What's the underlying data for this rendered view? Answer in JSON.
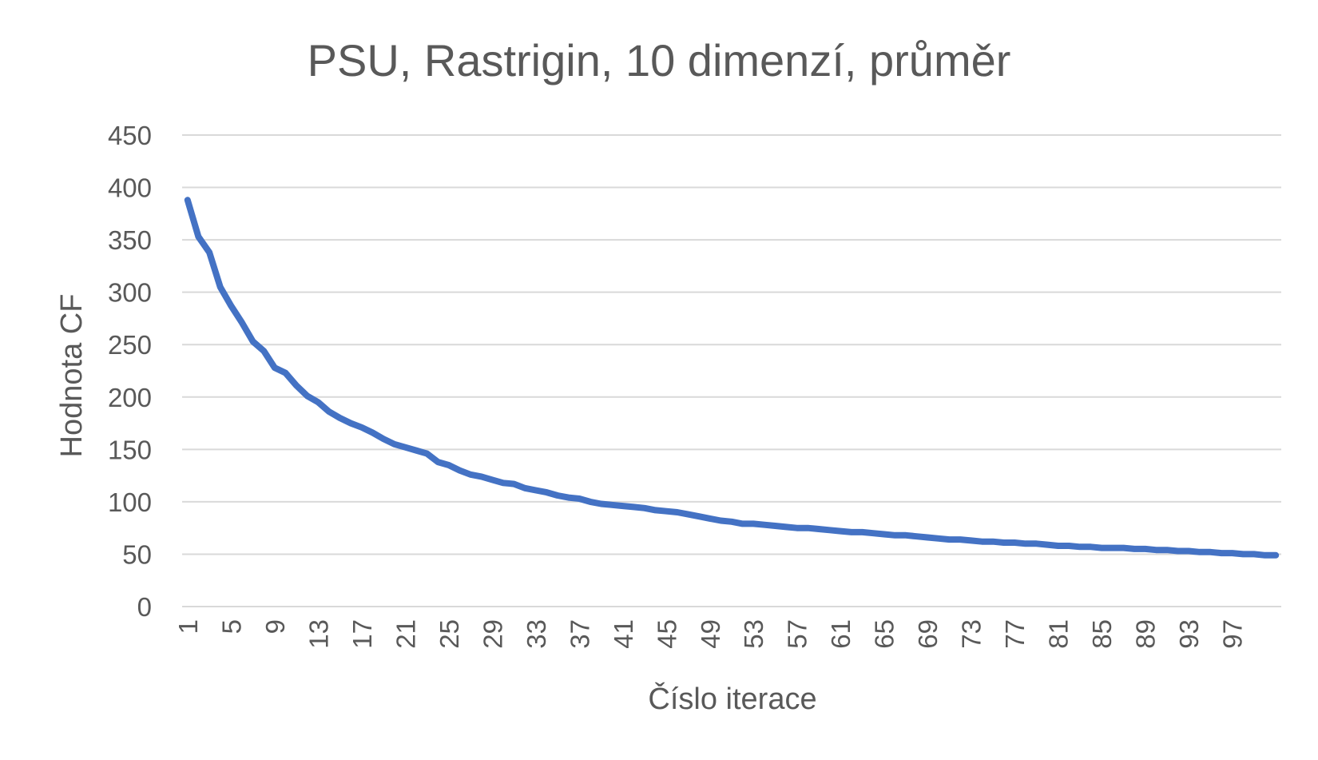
{
  "chart_data": {
    "type": "line",
    "title": "PSU, Rastrigin, 10 dimenzí, průměr",
    "xlabel": "Číslo iterace",
    "ylabel": "Hodnota CF",
    "ylim": [
      0,
      450
    ],
    "yticks": [
      "0",
      "50",
      "100",
      "150",
      "200",
      "250",
      "300",
      "350",
      "400",
      "450"
    ],
    "x": [
      1,
      2,
      3,
      4,
      5,
      6,
      7,
      8,
      9,
      10,
      11,
      12,
      13,
      14,
      15,
      16,
      17,
      18,
      19,
      20,
      21,
      22,
      23,
      24,
      25,
      26,
      27,
      28,
      29,
      30,
      31,
      32,
      33,
      34,
      35,
      36,
      37,
      38,
      39,
      40,
      41,
      42,
      43,
      44,
      45,
      46,
      47,
      48,
      49,
      50,
      51,
      52,
      53,
      54,
      55,
      56,
      57,
      58,
      59,
      60,
      61,
      62,
      63,
      64,
      65,
      66,
      67,
      68,
      69,
      70,
      71,
      72,
      73,
      74,
      75,
      76,
      77,
      78,
      79,
      80,
      81,
      82,
      83,
      84,
      85,
      86,
      87,
      88,
      89,
      90,
      91,
      92,
      93,
      94,
      95,
      96,
      97,
      98,
      99,
      100,
      101
    ],
    "xtick_labels": [
      "1",
      "5",
      "9",
      "13",
      "17",
      "21",
      "25",
      "29",
      "33",
      "37",
      "41",
      "45",
      "49",
      "53",
      "57",
      "61",
      "65",
      "69",
      "73",
      "77",
      "81",
      "85",
      "89",
      "93",
      "97"
    ],
    "grid": true,
    "legend": "none",
    "series": [
      {
        "color": "#4472c4",
        "values": [
          388,
          353,
          338,
          305,
          287,
          271,
          253,
          244,
          228,
          223,
          211,
          201,
          195,
          186,
          180,
          175,
          171,
          166,
          160,
          155,
          152,
          149,
          146,
          138,
          135,
          130,
          126,
          124,
          121,
          118,
          117,
          113,
          111,
          109,
          106,
          104,
          103,
          100,
          98,
          97,
          96,
          95,
          94,
          92,
          91,
          90,
          88,
          86,
          84,
          82,
          81,
          79,
          79,
          78,
          77,
          76,
          75,
          75,
          74,
          73,
          72,
          71,
          71,
          70,
          69,
          68,
          68,
          67,
          66,
          65,
          64,
          64,
          63,
          62,
          62,
          61,
          61,
          60,
          60,
          59,
          58,
          58,
          57,
          57,
          56,
          56,
          56,
          55,
          55,
          54,
          54,
          53,
          53,
          52,
          52,
          51,
          51,
          50,
          50,
          49,
          49
        ]
      }
    ]
  }
}
